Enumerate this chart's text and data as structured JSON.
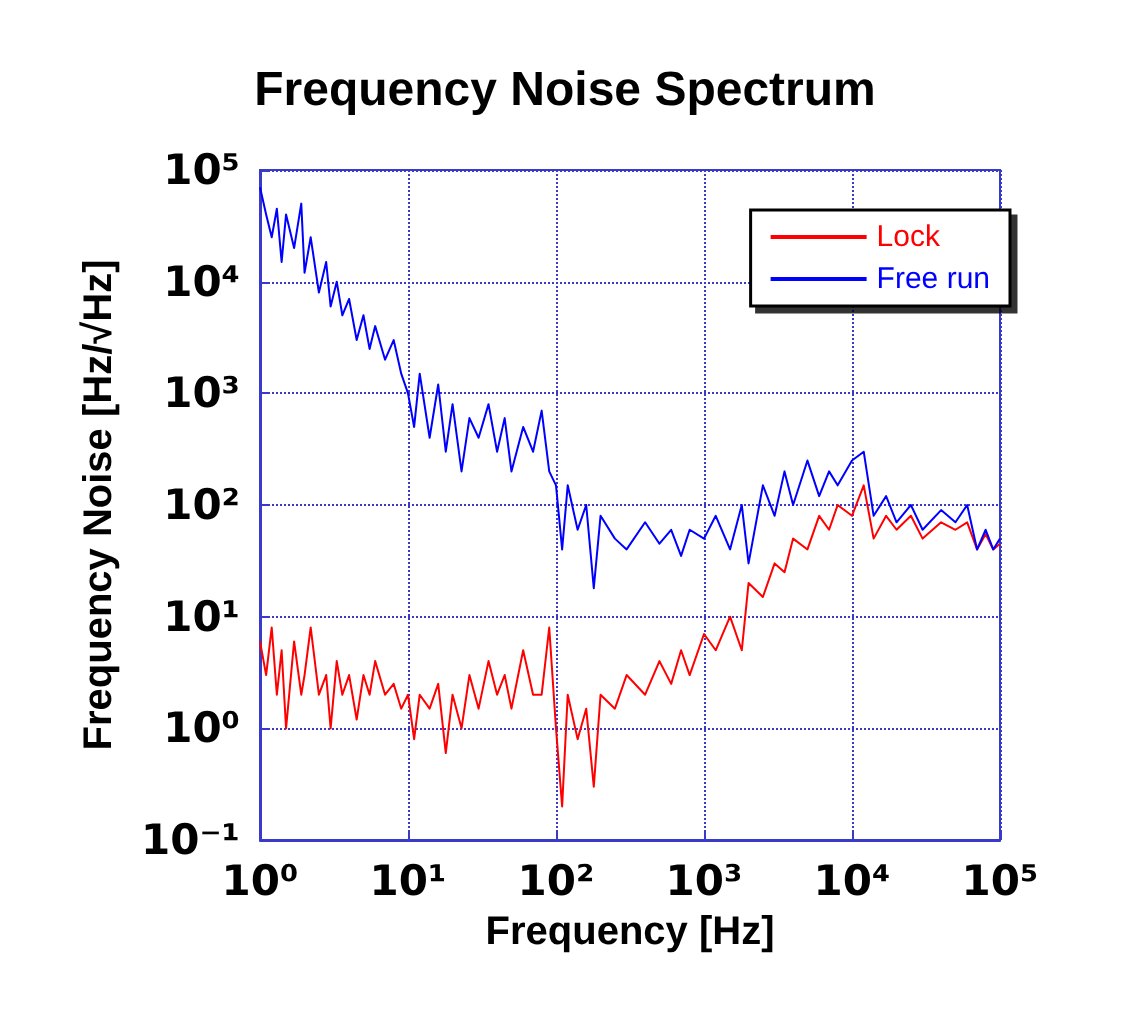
{
  "chart_data": {
    "type": "line",
    "title": "Frequency Noise Spectrum",
    "xlabel": "Frequency [Hz]",
    "ylabel": "Frequency Noise [Hz/√Hz]",
    "log": "xy",
    "grid": true,
    "legend": "top right",
    "line_style": "solid",
    "marker": "none",
    "x": [
      1,
      1.1,
      1.2,
      1.3,
      1.4,
      1.5,
      1.7,
      1.9,
      2,
      2.2,
      2.5,
      2.8,
      3,
      3.3,
      3.6,
      4,
      4.5,
      5,
      5.5,
      6,
      7,
      8,
      9,
      10,
      11,
      12,
      14,
      16,
      18,
      20,
      23,
      26,
      30,
      35,
      40,
      45,
      50,
      60,
      70,
      80,
      90,
      100,
      110,
      120,
      140,
      160,
      180,
      200,
      250,
      300,
      400,
      500,
      600,
      700,
      800,
      1000,
      1200,
      1500,
      1800,
      2000,
      2500,
      3000,
      3500,
      4000,
      5000,
      6000,
      7000,
      8000,
      10000,
      12000,
      14000,
      17000,
      20000,
      25000,
      30000,
      40000,
      50000,
      60000,
      70000,
      80000,
      90000,
      100000
    ],
    "series": [
      {
        "name": "Lock",
        "color": "#ff0000",
        "values": [
          6,
          3,
          8,
          2,
          5,
          1,
          6,
          2,
          3,
          8,
          2,
          3,
          1,
          4,
          2,
          3,
          1.2,
          3,
          2,
          4,
          2,
          2.5,
          1.5,
          2,
          0.8,
          2,
          1.5,
          2.5,
          0.6,
          2,
          1,
          3,
          1.5,
          4,
          2,
          3,
          1.5,
          5,
          2,
          2,
          8,
          1,
          0.2,
          2,
          0.8,
          1.5,
          0.3,
          2,
          1.5,
          3,
          2,
          4,
          2.5,
          5,
          3,
          7,
          5,
          10,
          5,
          20,
          15,
          30,
          25,
          50,
          40,
          80,
          60,
          100,
          80,
          150,
          50,
          80,
          60,
          80,
          50,
          70,
          60,
          70,
          40,
          55,
          40,
          45
        ]
      },
      {
        "name": "Free run",
        "color": "#0000ff",
        "values": [
          70000,
          40000,
          25000,
          45000,
          15000,
          40000,
          20000,
          50000,
          12000,
          25000,
          8000,
          15000,
          6000,
          10000,
          5000,
          7000,
          3000,
          5000,
          2500,
          4000,
          2000,
          3000,
          1500,
          1000,
          500,
          1500,
          400,
          1200,
          300,
          800,
          200,
          600,
          400,
          800,
          300,
          600,
          200,
          500,
          300,
          700,
          200,
          150,
          40,
          150,
          60,
          100,
          18,
          80,
          50,
          40,
          70,
          45,
          60,
          35,
          60,
          50,
          80,
          40,
          100,
          30,
          150,
          80,
          200,
          100,
          250,
          120,
          200,
          150,
          250,
          300,
          80,
          120,
          70,
          100,
          60,
          90,
          70,
          100,
          40,
          60,
          40,
          50
        ]
      }
    ],
    "xlim": [
      1,
      100000
    ],
    "ylim": [
      0.1,
      100000
    ],
    "xticks": [
      {
        "value": 1,
        "label": "10⁰"
      },
      {
        "value": 10,
        "label": "10¹"
      },
      {
        "value": 100,
        "label": "10²"
      },
      {
        "value": 1000,
        "label": "10³"
      },
      {
        "value": 10000,
        "label": "10⁴"
      },
      {
        "value": 100000,
        "label": "10⁵"
      }
    ],
    "yticks": [
      {
        "value": 0.1,
        "label": "10⁻¹"
      },
      {
        "value": 1,
        "label": "10⁰"
      },
      {
        "value": 10,
        "label": "10¹"
      },
      {
        "value": 100,
        "label": "10²"
      },
      {
        "value": 1000,
        "label": "10³"
      },
      {
        "value": 10000,
        "label": "10⁴"
      },
      {
        "value": 100000,
        "label": "10⁵"
      }
    ]
  }
}
